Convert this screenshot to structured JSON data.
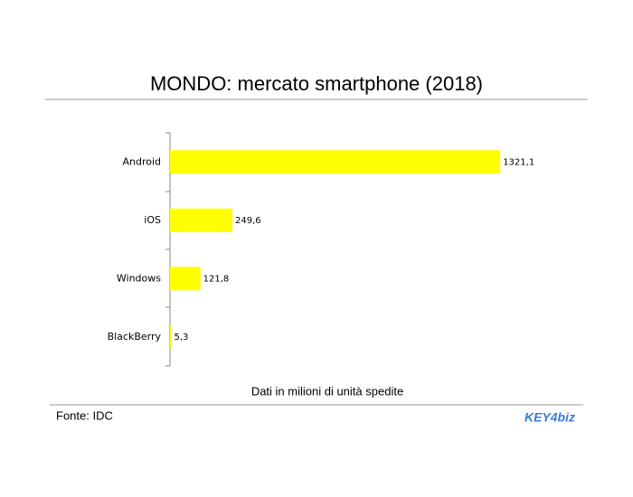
{
  "chart_data": {
    "type": "bar",
    "orientation": "horizontal",
    "title": "MONDO: mercato smartphone (2018)",
    "x_label": "Dati in milioni di unità spedite",
    "source": "Fonte: IDC",
    "logo": "KEY4biz",
    "categories": [
      "Android",
      "iOS",
      "Windows",
      "BlackBerry"
    ],
    "values": [
      1321.1,
      249.6,
      121.8,
      5.3
    ],
    "value_labels": [
      "1321,1",
      "249,6",
      "121,8",
      "5,3"
    ],
    "color": "#ffff00",
    "xlim": [
      0,
      1400
    ]
  }
}
